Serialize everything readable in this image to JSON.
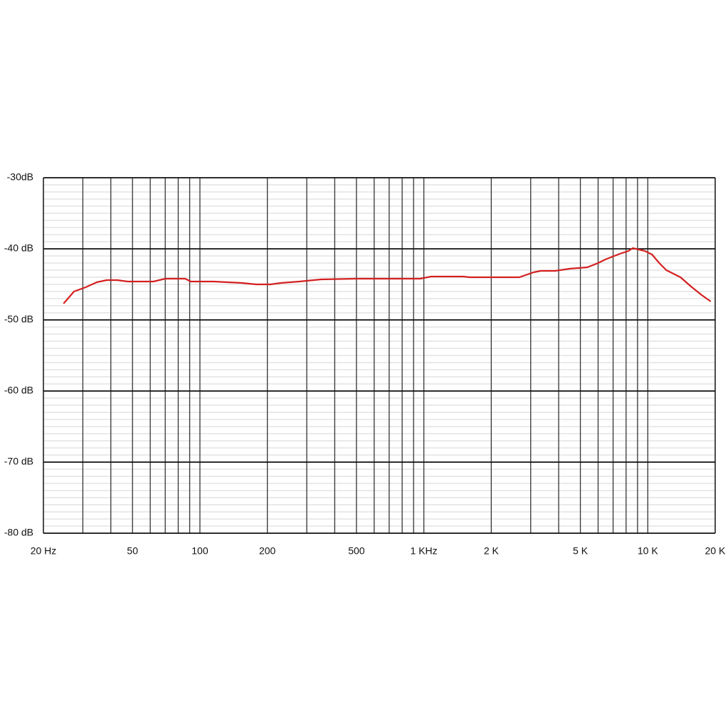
{
  "chart_data": {
    "type": "line",
    "xscale": "log",
    "x": [
      24.6,
      27.4,
      30.9,
      34.6,
      38.4,
      42.7,
      47.6,
      62,
      70,
      86,
      91,
      115,
      154,
      178,
      207,
      230,
      278,
      347,
      497,
      963,
      1077,
      1500,
      1600,
      2670,
      3090,
      3330,
      3860,
      4470,
      5370,
      6000,
      6460,
      7500,
      8200,
      8570,
      9700,
      10450,
      11250,
      12100,
      14000,
      15600,
      17400,
      19100
    ],
    "series": [
      {
        "color": "#d42020",
        "values": [
          -47.7,
          -46.0,
          -45.4,
          -44.7,
          -44.4,
          -44.4,
          -44.6,
          -44.6,
          -44.2,
          -44.2,
          -44.6,
          -44.6,
          -44.8,
          -45.0,
          -45.0,
          -44.8,
          -44.6,
          -44.3,
          -44.2,
          -44.2,
          -43.9,
          -43.9,
          -44.0,
          -44.0,
          -43.3,
          -43.1,
          -43.1,
          -42.8,
          -42.6,
          -42.0,
          -41.5,
          -40.7,
          -40.3,
          -39.9,
          -40.3,
          -40.8,
          -42.0,
          -43.0,
          -44.0,
          -45.3,
          -46.5,
          -47.4
        ]
      }
    ],
    "xlim": [
      20,
      20000
    ],
    "ylim": [
      -80,
      -30
    ],
    "xticks": [
      {
        "value": 20,
        "label": "20 Hz"
      },
      50,
      100,
      200,
      500,
      {
        "value": 1000,
        "label": "1 KHz"
      },
      {
        "value": 2000,
        "label": "2 K"
      },
      {
        "value": 5000,
        "label": "5 K"
      },
      {
        "value": 10000,
        "label": "10 K"
      },
      {
        "value": 20000,
        "label": "20 K"
      }
    ],
    "x_grid": [
      30,
      40,
      50,
      60,
      70,
      80,
      90,
      100,
      200,
      300,
      400,
      500,
      600,
      700,
      800,
      900,
      1000,
      2000,
      3000,
      4000,
      5000,
      6000,
      7000,
      8000,
      9000,
      10000
    ],
    "yticks": [
      {
        "value": -30,
        "label": "-30dB"
      },
      {
        "value": -40,
        "label": "-40 dB"
      },
      {
        "value": -50,
        "label": "-50 dB"
      },
      {
        "value": -60,
        "label": "-60 dB"
      },
      {
        "value": -70,
        "label": "-70 dB"
      },
      {
        "value": -80,
        "label": "-80 dB"
      }
    ],
    "minor_grid_step": 1
  }
}
